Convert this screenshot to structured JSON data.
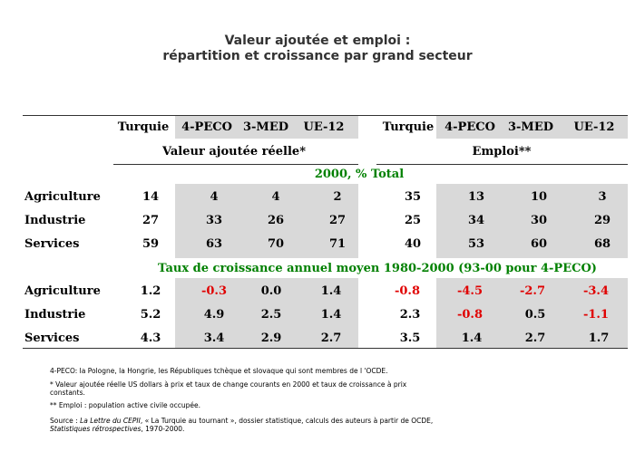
{
  "title_line1": "Valeur ajoutée et emploi :",
  "title_line2": "répartition et croissance par grand secteur",
  "columns_left": [
    "Turquie",
    "4-PECO",
    "3-MED",
    "UE-12"
  ],
  "columns_right": [
    "Turquie",
    "4-PECO",
    "3-MED",
    "UE-12"
  ],
  "group_left": "Valeur ajoutée réelle*",
  "group_right": "Emploi**",
  "section1_title": "2000, % Total",
  "section2_title": "Taux de croissance annuel moyen 1980-2000 (93-00 pour 4-PECO)",
  "section1_rows": [
    {
      "label": "Agriculture",
      "values": [
        "14",
        "4",
        "4",
        "2",
        "35",
        "13",
        "10",
        "3"
      ]
    },
    {
      "label": "Industrie",
      "values": [
        "27",
        "33",
        "26",
        "27",
        "25",
        "34",
        "30",
        "29"
      ]
    },
    {
      "label": "Services",
      "values": [
        "59",
        "63",
        "70",
        "71",
        "40",
        "53",
        "60",
        "68"
      ]
    }
  ],
  "section2_rows": [
    {
      "label": "Agriculture",
      "values": [
        "1.2",
        "-0.3",
        "0.0",
        "1.4",
        "-0.8",
        "-4.5",
        "-2.7",
        "-3.4"
      ]
    },
    {
      "label": "Industrie",
      "values": [
        "5.2",
        "4.9",
        "2.5",
        "1.4",
        "2.3",
        "-0.8",
        "0.5",
        "-1.1"
      ]
    },
    {
      "label": "Services",
      "values": [
        "4.3",
        "3.4",
        "2.9",
        "2.7",
        "3.5",
        "1.4",
        "2.7",
        "1.7"
      ]
    }
  ],
  "notes": {
    "n1": "4-PECO: la Pologne, la Hongrie, les Républiques tchèque et slovaque qui sont membres de l 'OCDE.",
    "n2": "* Valeur ajoutée réelle US dollars à prix et taux de change courants en 2000 et taux de croissance à prix constants.",
    "n3": "** Emploi : population active civile occupée.",
    "n4a": "Source : ",
    "n4b": "La Lettre du CEPII",
    "n4c": ", « La Turquie au  tournant », dossier statistique, calculs des auteurs à partir de OCDE, ",
    "n4d": "Statistiques rétrospectives",
    "n4e": ", 1970-2000."
  }
}
